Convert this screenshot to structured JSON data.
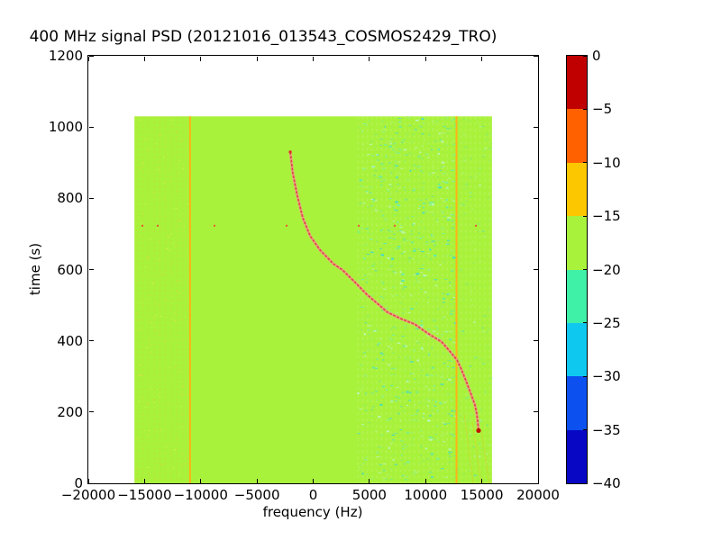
{
  "title": "400 MHz signal PSD (20121016_013543_COSMOS2429_TRO)",
  "axes": {
    "xlabel": "frequency (Hz)",
    "ylabel": "time (s)",
    "x_tick_values": [
      -20000,
      -15000,
      -10000,
      -5000,
      0,
      5000,
      10000,
      15000,
      20000
    ],
    "x_tick_labels": [
      "−20000",
      "−15000",
      "−10000",
      "−5000",
      "0",
      "5000",
      "10000",
      "15000",
      "20000"
    ],
    "y_tick_values": [
      0,
      200,
      400,
      600,
      800,
      1000,
      1200
    ],
    "y_tick_labels": [
      "0",
      "200",
      "400",
      "600",
      "800",
      "1000",
      "1200"
    ]
  },
  "colorbar": {
    "tick_values": [
      0,
      -5,
      -10,
      -15,
      -20,
      -25,
      -30,
      -35,
      -40
    ],
    "tick_labels": [
      "0",
      "−5",
      "−10",
      "−15",
      "−20",
      "−25",
      "−30",
      "−35",
      "−40"
    ],
    "segment_colors": [
      "#c00000",
      "#ff6000",
      "#fdc700",
      "#a9f23b",
      "#3ff0a7",
      "#0fc8f0",
      "#0c50f0",
      "#0707c4"
    ]
  },
  "palette": {
    "background_green": "#a9f23b",
    "carrier_orange": "#fdb414",
    "track_main": "#dc4a40",
    "track_halo": "#f39d92",
    "track_end": "#c01000",
    "artifact_red": "#f04634",
    "speckle_colors": [
      "#52e9c0",
      "#36d8df",
      "#6cf0b2",
      "#8df38f",
      "#c0f8de"
    ],
    "left_speckle_colors": [
      "#e8f56a",
      "#fdd95a",
      "#f7c152"
    ]
  },
  "chart_data": {
    "type": "heatmap",
    "title": "400 MHz signal PSD (20121016_013543_COSMOS2429_TRO)",
    "xlabel": "frequency (Hz)",
    "ylabel": "time (s)",
    "xlim": [
      -20000,
      20000
    ],
    "ylim": [
      0,
      1200
    ],
    "grid": false,
    "colorbar_range_db": [
      0,
      -40
    ],
    "colorbar_ticks_db": [
      0,
      -5,
      -10,
      -15,
      -20,
      -25,
      -30,
      -35,
      -40
    ],
    "data_extent": {
      "freq_hz": [
        -15900,
        15900
      ],
      "time_s": [
        0,
        1030
      ]
    },
    "background_psd_db": -18,
    "carrier_lines_hz": [
      -10950,
      12750
    ],
    "noise_band_hz": [
      4000,
      15900
    ],
    "doppler_track_freq_time": [
      [
        -2040,
        930
      ],
      [
        -1820,
        872
      ],
      [
        -1400,
        806
      ],
      [
        -920,
        745
      ],
      [
        -280,
        695
      ],
      [
        600,
        655
      ],
      [
        1800,
        616
      ],
      [
        2600,
        599
      ],
      [
        3700,
        565
      ],
      [
        4770,
        530
      ],
      [
        5700,
        505
      ],
      [
        6610,
        480
      ],
      [
        7800,
        462
      ],
      [
        9020,
        447
      ],
      [
        10200,
        421
      ],
      [
        11420,
        397
      ],
      [
        12100,
        373
      ],
      [
        12790,
        346
      ],
      [
        13200,
        318
      ],
      [
        13590,
        288
      ],
      [
        14000,
        254
      ],
      [
        14390,
        220
      ],
      [
        14550,
        195
      ],
      [
        14630,
        174
      ],
      [
        14710,
        148
      ]
    ],
    "artifact_dots": {
      "time_s": 723,
      "freq_hz": [
        -15190,
        -13830,
        -8780,
        -2365,
        4048,
        7255,
        14470
      ]
    }
  }
}
